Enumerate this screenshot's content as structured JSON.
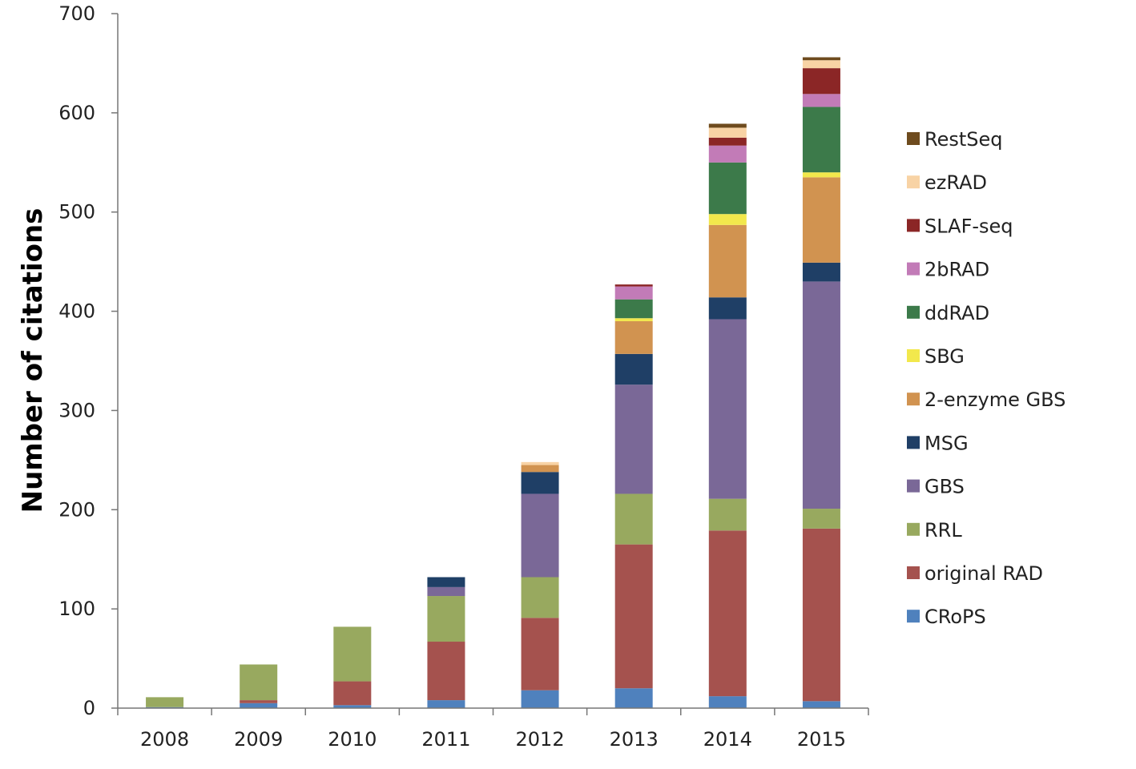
{
  "chart_data": {
    "type": "bar",
    "stacked": true,
    "title": "",
    "xlabel": "",
    "ylabel": "Number of citations",
    "ylim": [
      0,
      700
    ],
    "yticks": [
      0,
      100,
      200,
      300,
      400,
      500,
      600,
      700
    ],
    "categories": [
      "2008",
      "2009",
      "2010",
      "2011",
      "2012",
      "2013",
      "2014",
      "2015"
    ],
    "legend_position": "right",
    "series": [
      {
        "name": "CRoPS",
        "color": "#4f81bd",
        "values": [
          1,
          5,
          3,
          8,
          18,
          20,
          12,
          7
        ]
      },
      {
        "name": "original RAD",
        "color": "#a5524e",
        "values": [
          0,
          3,
          24,
          59,
          73,
          145,
          167,
          174
        ]
      },
      {
        "name": "RRL",
        "color": "#98a95f",
        "values": [
          10,
          36,
          55,
          46,
          41,
          51,
          32,
          20
        ]
      },
      {
        "name": "GBS",
        "color": "#7a6897",
        "values": [
          0,
          0,
          0,
          9,
          84,
          110,
          181,
          229
        ]
      },
      {
        "name": "MSG",
        "color": "#1f3f66",
        "values": [
          0,
          0,
          0,
          10,
          22,
          31,
          22,
          19
        ]
      },
      {
        "name": "2-enzyme GBS",
        "color": "#d19350",
        "values": [
          0,
          0,
          0,
          0,
          7,
          33,
          73,
          86
        ]
      },
      {
        "name": "SBG",
        "color": "#f2e84c",
        "values": [
          0,
          0,
          0,
          0,
          0,
          3,
          11,
          5
        ]
      },
      {
        "name": "ddRAD",
        "color": "#3c7a4a",
        "values": [
          0,
          0,
          0,
          0,
          0,
          19,
          52,
          66
        ]
      },
      {
        "name": "2bRAD",
        "color": "#c27bb7",
        "values": [
          0,
          0,
          0,
          0,
          0,
          13,
          17,
          13
        ]
      },
      {
        "name": "SLAF-seq",
        "color": "#8b2626",
        "values": [
          0,
          0,
          0,
          0,
          0,
          2,
          8,
          26
        ]
      },
      {
        "name": "ezRAD",
        "color": "#f8d3a5",
        "values": [
          0,
          0,
          0,
          0,
          3,
          0,
          10,
          8
        ]
      },
      {
        "name": "RestSeq",
        "color": "#6e4b1e",
        "values": [
          0,
          0,
          0,
          0,
          0,
          0,
          4,
          3
        ]
      }
    ]
  }
}
